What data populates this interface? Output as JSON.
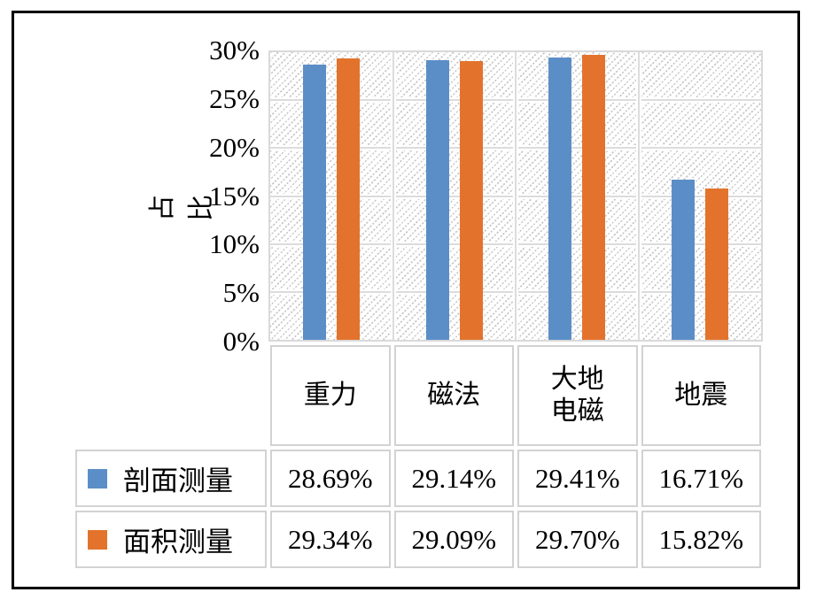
{
  "figure": {
    "background": "#ffffff",
    "border_color": "#000000",
    "grid_color": "#dcdcdc",
    "plot_border_color": "#d9d9d9",
    "table_border_color": "#d2d2d2"
  },
  "chart_data": {
    "type": "bar",
    "title": "",
    "xlabel": "",
    "ylabel": "占比",
    "ylim": [
      0,
      30
    ],
    "ytick_step": 5,
    "yticks": [
      "30%",
      "25%",
      "20%",
      "15%",
      "10%",
      "5%",
      "0%"
    ],
    "grid": true,
    "plot_fill": "diagonal-hatch",
    "legend_position": "table-left",
    "categories": [
      "重力",
      "磁法",
      "大地\n电磁",
      "地震"
    ],
    "series": [
      {
        "name": "剖面测量",
        "color": "#5B8EC7",
        "values": [
          28.69,
          29.14,
          29.41,
          16.71
        ],
        "values_formatted": [
          "28.69%",
          "29.14%",
          "29.41%",
          "16.71%"
        ]
      },
      {
        "name": "面积测量",
        "color": "#E3732C",
        "values": [
          29.34,
          29.09,
          29.7,
          15.82
        ],
        "values_formatted": [
          "29.34%",
          "29.09%",
          "29.70%",
          "15.82%"
        ]
      }
    ]
  }
}
